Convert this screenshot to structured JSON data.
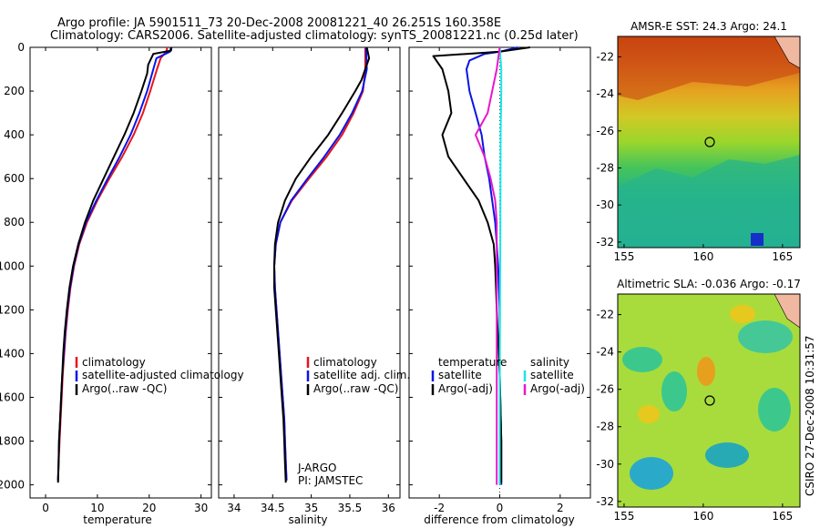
{
  "header": {
    "line1": "Argo profile: JA 5901511_73 20-Dec-2008 20081221_40 26.251S 160.358E",
    "line2": "Climatology: CARS2006. Satellite-adjusted climatology: synTS_20081221.nc (0.25d later)"
  },
  "side_stamp": "CSIRO 27-Dec-2008 10:31:57",
  "colors": {
    "red": "#e8141b",
    "blue": "#0a14e6",
    "black": "#000000",
    "cyan": "#19e6e6",
    "magenta": "#e619cc"
  },
  "chart_data": [
    {
      "type": "line",
      "xlabel": "temperature",
      "xlim": [
        -3,
        32
      ],
      "ylim": [
        2060,
        0
      ],
      "xticks": [
        0,
        10,
        20,
        30
      ],
      "yticks": [
        0,
        200,
        400,
        600,
        800,
        1000,
        1200,
        1400,
        1600,
        1800,
        2000
      ],
      "legend": [
        "climatology",
        "satellite-adjusted climatology",
        "Argo(..raw -QC)"
      ],
      "series": [
        {
          "name": "climatology",
          "color": "red",
          "points": [
            [
              23.5,
              0
            ],
            [
              23.3,
              20
            ],
            [
              22.2,
              50
            ],
            [
              21.5,
              100
            ],
            [
              20.2,
              200
            ],
            [
              18.8,
              300
            ],
            [
              17.0,
              400
            ],
            [
              14.8,
              500
            ],
            [
              12.3,
              600
            ],
            [
              10.0,
              700
            ],
            [
              8.0,
              800
            ],
            [
              6.5,
              900
            ],
            [
              5.5,
              1000
            ],
            [
              4.8,
              1100
            ],
            [
              4.3,
              1200
            ],
            [
              3.9,
              1300
            ],
            [
              3.6,
              1400
            ],
            [
              3.3,
              1500
            ],
            [
              3.1,
              1600
            ],
            [
              2.9,
              1700
            ],
            [
              2.7,
              1800
            ],
            [
              2.5,
              1900
            ],
            [
              2.4,
              1980
            ]
          ]
        },
        {
          "name": "satellite-adjusted climatology",
          "color": "blue",
          "points": [
            [
              24.2,
              0
            ],
            [
              24.0,
              20
            ],
            [
              21.4,
              50
            ],
            [
              20.8,
              100
            ],
            [
              19.6,
              200
            ],
            [
              18.1,
              300
            ],
            [
              16.4,
              400
            ],
            [
              14.3,
              500
            ],
            [
              12.0,
              600
            ],
            [
              9.8,
              700
            ],
            [
              7.8,
              800
            ],
            [
              6.4,
              900
            ],
            [
              5.4,
              1000
            ],
            [
              4.7,
              1100
            ],
            [
              4.2,
              1200
            ],
            [
              3.8,
              1300
            ],
            [
              3.5,
              1400
            ],
            [
              3.2,
              1500
            ],
            [
              3.0,
              1600
            ],
            [
              2.8,
              1700
            ],
            [
              2.6,
              1800
            ],
            [
              2.5,
              1900
            ],
            [
              2.4,
              1980
            ]
          ]
        },
        {
          "name": "Argo(..raw -QC)",
          "color": "black",
          "points": [
            [
              24.3,
              0
            ],
            [
              24.2,
              15
            ],
            [
              20.8,
              30
            ],
            [
              19.8,
              80
            ],
            [
              19.6,
              120
            ],
            [
              18.5,
              200
            ],
            [
              17.0,
              300
            ],
            [
              15.2,
              400
            ],
            [
              13.2,
              500
            ],
            [
              11.2,
              600
            ],
            [
              9.2,
              700
            ],
            [
              7.6,
              800
            ],
            [
              6.3,
              900
            ],
            [
              5.3,
              1000
            ],
            [
              4.6,
              1100
            ],
            [
              4.1,
              1200
            ],
            [
              3.7,
              1300
            ],
            [
              3.4,
              1400
            ],
            [
              3.2,
              1500
            ],
            [
              3.0,
              1600
            ],
            [
              2.8,
              1700
            ],
            [
              2.6,
              1800
            ],
            [
              2.5,
              1900
            ],
            [
              2.4,
              1990
            ]
          ]
        }
      ]
    },
    {
      "type": "line",
      "xlabel": "salinity",
      "xlim": [
        33.8,
        36.15
      ],
      "ylim": [
        2060,
        0
      ],
      "xticks": [
        34,
        34.5,
        35,
        35.5,
        36
      ],
      "legend": [
        "climatology",
        "satellite adj. clim.",
        "Argo(..raw -QC)"
      ],
      "annotation": [
        "J-ARGO",
        "PI: JAMSTEC"
      ],
      "series": [
        {
          "name": "climatology",
          "color": "red",
          "points": [
            [
              35.7,
              0
            ],
            [
              35.7,
              100
            ],
            [
              35.67,
              200
            ],
            [
              35.55,
              300
            ],
            [
              35.4,
              400
            ],
            [
              35.2,
              500
            ],
            [
              34.97,
              600
            ],
            [
              34.75,
              700
            ],
            [
              34.6,
              800
            ],
            [
              34.54,
              900
            ],
            [
              34.52,
              1000
            ],
            [
              34.53,
              1100
            ],
            [
              34.55,
              1200
            ],
            [
              34.57,
              1300
            ],
            [
              34.59,
              1400
            ],
            [
              34.61,
              1500
            ],
            [
              34.63,
              1600
            ],
            [
              34.65,
              1700
            ],
            [
              34.66,
              1800
            ],
            [
              34.67,
              1900
            ],
            [
              34.68,
              1980
            ]
          ]
        },
        {
          "name": "satellite adj. clim.",
          "color": "blue",
          "points": [
            [
              35.71,
              0
            ],
            [
              35.72,
              100
            ],
            [
              35.66,
              200
            ],
            [
              35.53,
              300
            ],
            [
              35.37,
              400
            ],
            [
              35.17,
              500
            ],
            [
              34.95,
              600
            ],
            [
              34.74,
              700
            ],
            [
              34.6,
              800
            ],
            [
              34.54,
              900
            ],
            [
              34.52,
              1000
            ],
            [
              34.53,
              1100
            ],
            [
              34.55,
              1200
            ],
            [
              34.57,
              1300
            ],
            [
              34.59,
              1400
            ],
            [
              34.61,
              1500
            ],
            [
              34.63,
              1600
            ],
            [
              34.65,
              1700
            ],
            [
              34.66,
              1800
            ],
            [
              34.67,
              1900
            ],
            [
              34.68,
              1980
            ]
          ]
        },
        {
          "name": "Argo(..raw -QC)",
          "color": "black",
          "points": [
            [
              35.72,
              0
            ],
            [
              35.75,
              50
            ],
            [
              35.65,
              150
            ],
            [
              35.57,
              200
            ],
            [
              35.4,
              300
            ],
            [
              35.22,
              400
            ],
            [
              35.0,
              500
            ],
            [
              34.8,
              600
            ],
            [
              34.66,
              700
            ],
            [
              34.57,
              800
            ],
            [
              34.53,
              900
            ],
            [
              34.52,
              1000
            ],
            [
              34.52,
              1100
            ],
            [
              34.54,
              1200
            ],
            [
              34.56,
              1300
            ],
            [
              34.58,
              1400
            ],
            [
              34.6,
              1500
            ],
            [
              34.62,
              1600
            ],
            [
              34.64,
              1700
            ],
            [
              34.65,
              1800
            ],
            [
              34.66,
              1900
            ],
            [
              34.67,
              1990
            ]
          ]
        }
      ]
    },
    {
      "type": "line",
      "xlabel": "difference from climatology",
      "xlim": [
        -3,
        3
      ],
      "ylim": [
        2060,
        0
      ],
      "xticks": [
        -2,
        0,
        2
      ],
      "legend_titles": [
        "temperature",
        "salinity"
      ],
      "legend": [
        "satellite",
        "Argo(-adj)",
        "satellite",
        "Argo(-adj)"
      ],
      "series": [
        {
          "name": "temperature satellite",
          "color": "blue",
          "points": [
            [
              0.6,
              0
            ],
            [
              0.0,
              20
            ],
            [
              -0.5,
              30
            ],
            [
              -1.0,
              60
            ],
            [
              -1.1,
              100
            ],
            [
              -1.0,
              200
            ],
            [
              -0.8,
              300
            ],
            [
              -0.6,
              400
            ],
            [
              -0.5,
              500
            ],
            [
              -0.35,
              600
            ],
            [
              -0.25,
              700
            ],
            [
              -0.15,
              800
            ],
            [
              -0.1,
              900
            ],
            [
              -0.05,
              1000
            ],
            [
              0,
              1200
            ],
            [
              0,
              1500
            ],
            [
              0.05,
              1800
            ],
            [
              0.05,
              2000
            ]
          ]
        },
        {
          "name": "temperature Argo(-adj)",
          "color": "black",
          "points": [
            [
              1.0,
              0
            ],
            [
              0,
              20
            ],
            [
              -2.2,
              40
            ],
            [
              -1.9,
              100
            ],
            [
              -1.7,
              200
            ],
            [
              -1.6,
              300
            ],
            [
              -1.9,
              400
            ],
            [
              -1.7,
              500
            ],
            [
              -1.2,
              600
            ],
            [
              -0.7,
              700
            ],
            [
              -0.4,
              800
            ],
            [
              -0.2,
              900
            ],
            [
              -0.15,
              1000
            ],
            [
              -0.1,
              1200
            ],
            [
              0,
              1500
            ],
            [
              0.05,
              1800
            ],
            [
              0.05,
              1990
            ]
          ]
        },
        {
          "name": "salinity satellite",
          "color": "cyan",
          "points": [
            [
              0,
              0
            ],
            [
              0.05,
              100
            ],
            [
              0.05,
              200
            ],
            [
              0.03,
              400
            ],
            [
              0.02,
              800
            ],
            [
              0.01,
              1200
            ],
            [
              0,
              1600
            ],
            [
              0,
              2000
            ]
          ]
        },
        {
          "name": "salinity Argo(-adj)",
          "color": "magenta",
          "points": [
            [
              0,
              0
            ],
            [
              -0.1,
              100
            ],
            [
              -0.4,
              300
            ],
            [
              -0.8,
              400
            ],
            [
              -0.5,
              500
            ],
            [
              -0.3,
              600
            ],
            [
              -0.15,
              700
            ],
            [
              -0.1,
              800
            ],
            [
              -0.1,
              1000
            ],
            [
              -0.1,
              1400
            ],
            [
              -0.1,
              1800
            ],
            [
              -0.1,
              2000
            ]
          ]
        }
      ]
    },
    {
      "type": "heatmap",
      "title": "AMSR-E SST: 24.3 Argo: 24.1",
      "xlim": [
        154.6,
        166.1
      ],
      "ylim": [
        -32.3,
        -20.9
      ],
      "xticks": [
        155,
        160,
        165
      ],
      "yticks": [
        -22,
        -24,
        -26,
        -28,
        -30,
        -32
      ],
      "marker": [
        160.36,
        -26.25
      ]
    },
    {
      "type": "heatmap",
      "title": "Altimetric SLA: -0.036 Argo: -0.17",
      "xlim": [
        154.6,
        166.1
      ],
      "ylim": [
        -32.3,
        -20.9
      ],
      "xticks": [
        155,
        160,
        165
      ],
      "yticks": [
        -22,
        -24,
        -26,
        -28,
        -30,
        -32
      ],
      "marker": [
        160.36,
        -26.25
      ]
    }
  ]
}
